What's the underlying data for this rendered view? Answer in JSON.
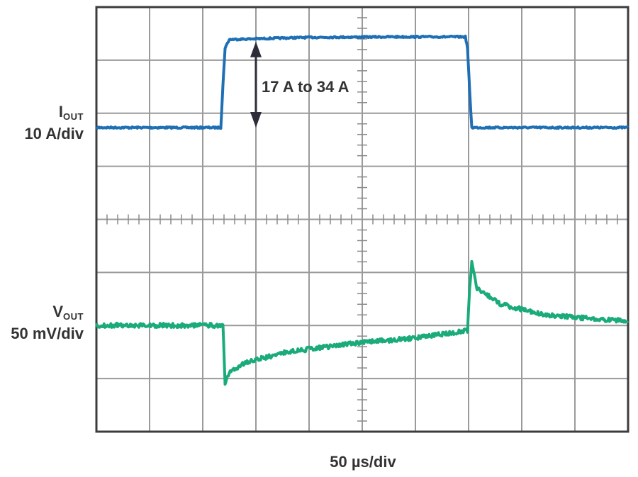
{
  "chart_data": {
    "type": "line",
    "grid": true,
    "grid_divisions": {
      "x": 10,
      "y": 8
    },
    "x_scale_label": "50 µs/div",
    "x_range_us": [
      0,
      500
    ],
    "series": [
      {
        "name_main": "I",
        "name_sub": "OUT",
        "scale_label": "10 A/div",
        "color": "#1f6fb5",
        "initial_value_A": 17,
        "step_value_A": 34,
        "step_up_at_us": 118,
        "step_down_at_us": 350,
        "transition_us": 4,
        "points": [
          {
            "x": 0,
            "y": 17
          },
          {
            "x": 117,
            "y": 17
          },
          {
            "x": 119,
            "y": 25
          },
          {
            "x": 121,
            "y": 32
          },
          {
            "x": 125,
            "y": 33.6
          },
          {
            "x": 200,
            "y": 34.0
          },
          {
            "x": 280,
            "y": 34.1
          },
          {
            "x": 347,
            "y": 34.1
          },
          {
            "x": 349,
            "y": 32
          },
          {
            "x": 351,
            "y": 24
          },
          {
            "x": 353,
            "y": 17
          },
          {
            "x": 500,
            "y": 17
          }
        ]
      },
      {
        "name_main": "V",
        "name_sub": "OUT",
        "scale_label": "50 mV/div",
        "color": "#1bab7b",
        "baseline_offset_mV": 0,
        "points": [
          {
            "x": 0,
            "y": 0
          },
          {
            "x": 119,
            "y": 0
          },
          {
            "x": 121,
            "y": -55
          },
          {
            "x": 125,
            "y": -45
          },
          {
            "x": 140,
            "y": -35
          },
          {
            "x": 180,
            "y": -25
          },
          {
            "x": 250,
            "y": -16
          },
          {
            "x": 300,
            "y": -12
          },
          {
            "x": 349,
            "y": -5
          },
          {
            "x": 351,
            "y": 35
          },
          {
            "x": 353,
            "y": 60
          },
          {
            "x": 358,
            "y": 35
          },
          {
            "x": 380,
            "y": 20
          },
          {
            "x": 420,
            "y": 10
          },
          {
            "x": 470,
            "y": 6
          },
          {
            "x": 500,
            "y": 4
          }
        ]
      }
    ],
    "annotation": "17 A to 34 A"
  }
}
